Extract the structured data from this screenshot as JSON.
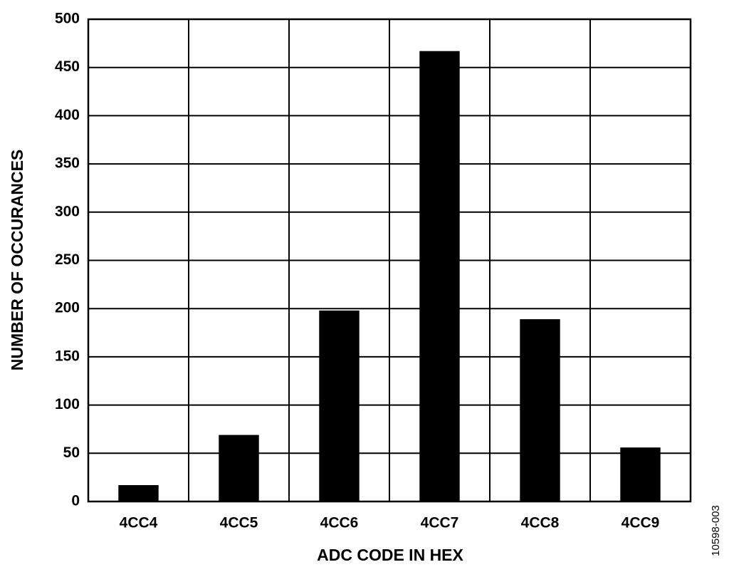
{
  "chart_data": {
    "type": "bar",
    "x_label": "ADC CODE IN HEX",
    "y_label": "NUMBER OF OCCURANCES",
    "figure_id": "10598-003",
    "categories": [
      "4CC4",
      "4CC5",
      "4CC6",
      "4CC7",
      "4CC8",
      "4CC9"
    ],
    "values": [
      17,
      69,
      198,
      467,
      189,
      56
    ],
    "color": "#000000",
    "ylim": [
      0,
      500
    ],
    "yticks": [
      0,
      50,
      100,
      150,
      200,
      250,
      300,
      350,
      400,
      450,
      500
    ],
    "grid": true
  }
}
